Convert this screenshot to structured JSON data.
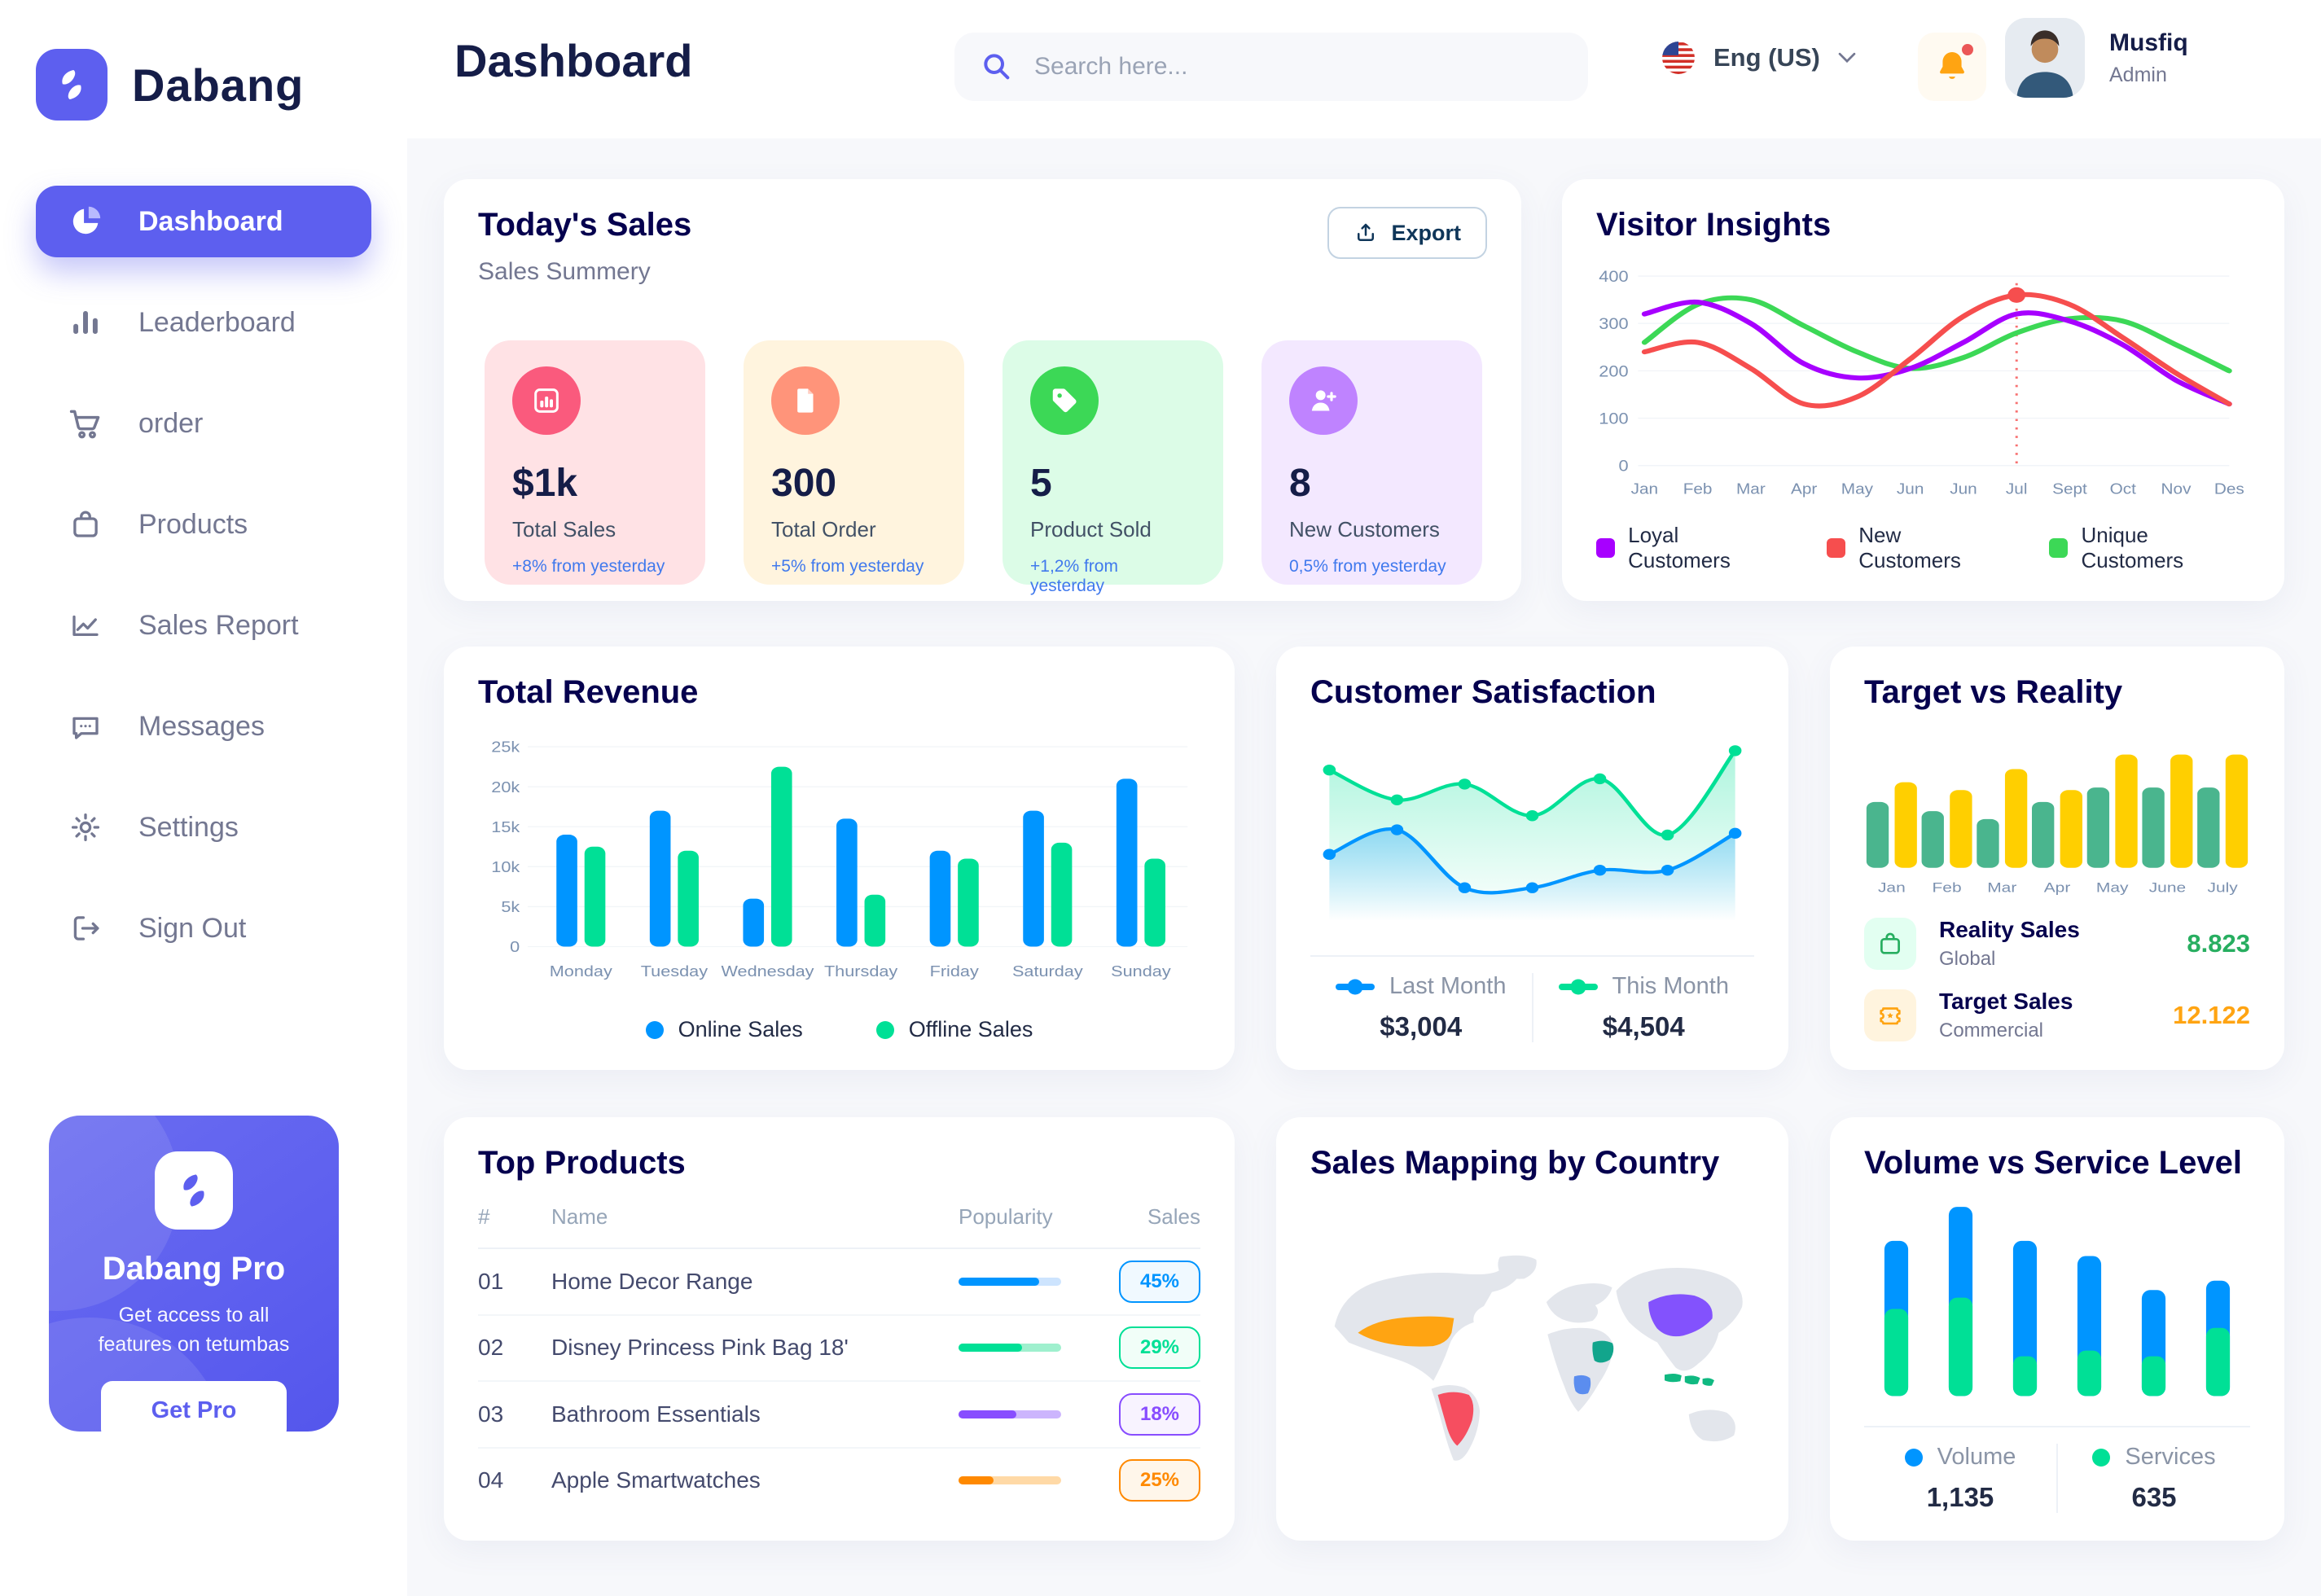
{
  "app": {
    "name": "Dabang"
  },
  "sidebar": {
    "items": [
      {
        "label": "Dashboard"
      },
      {
        "label": "Leaderboard"
      },
      {
        "label": "order"
      },
      {
        "label": "Products"
      },
      {
        "label": "Sales Report"
      },
      {
        "label": "Messages"
      },
      {
        "label": "Settings"
      },
      {
        "label": "Sign Out"
      }
    ],
    "promo": {
      "title": "Dabang Pro",
      "description": "Get access to all features on tetumbas",
      "button": "Get Pro"
    }
  },
  "header": {
    "title": "Dashboard",
    "search_placeholder": "Search here...",
    "language": "Eng (US)",
    "user": {
      "name": "Musfiq",
      "role": "Admin"
    }
  },
  "today_sales": {
    "title": "Today's Sales",
    "subtitle": "Sales Summery",
    "export_label": "Export",
    "stats": [
      {
        "value": "$1k",
        "label": "Total Sales",
        "delta": "+8% from yesterday",
        "bg": "#FFE2E5",
        "icon_bg": "#FA5A7D"
      },
      {
        "value": "300",
        "label": "Total Order",
        "delta": "+5% from yesterday",
        "bg": "#FFF4DE",
        "icon_bg": "#FF947A"
      },
      {
        "value": "5",
        "label": "Product Sold",
        "delta": "+1,2% from yesterday",
        "bg": "#DCFCE7",
        "icon_bg": "#3CD856"
      },
      {
        "value": "8",
        "label": "New Customers",
        "delta": "0,5% from yesterday",
        "bg": "#F3E8FF",
        "icon_bg": "#BF83FF"
      }
    ]
  },
  "top_products": {
    "title": "Top Products",
    "headers": [
      "#",
      "Name",
      "Popularity",
      "Sales"
    ],
    "rows": [
      {
        "num": "01",
        "name": "Home Decor Range",
        "bar_pct": 78,
        "sales": "45%",
        "color": "#0095FF",
        "track": "#CDE4FE",
        "badge_bg": "#F0F9FF"
      },
      {
        "num": "02",
        "name": "Disney Princess Pink Bag 18'",
        "bar_pct": 62,
        "sales": "29%",
        "color": "#00E096",
        "track": "#9FF0CE",
        "badge_bg": "#F1FEF8"
      },
      {
        "num": "03",
        "name": "Bathroom Essentials",
        "bar_pct": 56,
        "sales": "18%",
        "color": "#884DFF",
        "track": "#CCB5FD",
        "badge_bg": "#F8F3FF"
      },
      {
        "num": "04",
        "name": "Apple Smartwatches",
        "bar_pct": 34,
        "sales": "25%",
        "color": "#FF8900",
        "track": "#FFD9A6",
        "badge_bg": "#FFF6EA"
      }
    ]
  },
  "map": {
    "title": "Sales Mapping by Country",
    "countries": [
      {
        "name": "United States",
        "color": "#FFA412"
      },
      {
        "name": "Brazil",
        "color": "#F64E60"
      },
      {
        "name": "Saudi Arabia",
        "color": "#12A58C"
      },
      {
        "name": "DR Congo",
        "color": "#5B8DEF"
      },
      {
        "name": "China",
        "color": "#8352FD"
      },
      {
        "name": "Indonesia",
        "color": "#10B981"
      }
    ]
  },
  "chart_data": [
    {
      "id": "visitor_insights",
      "type": "line",
      "title": "Visitor Insights",
      "x": [
        "Jan",
        "Feb",
        "Mar",
        "Apr",
        "May",
        "Jun",
        "Jun",
        "Jul",
        "Sept",
        "Oct",
        "Nov",
        "Des"
      ],
      "ylim": [
        0,
        400
      ],
      "yticks": [
        0,
        100,
        200,
        300,
        400
      ],
      "grid": true,
      "legend_position": "bottom",
      "series": [
        {
          "name": "Loyal Customers",
          "color": "#A700FF",
          "values": [
            320,
            345,
            300,
            215,
            185,
            205,
            260,
            320,
            305,
            255,
            180,
            130
          ]
        },
        {
          "name": "New Customers",
          "color": "#F64E4E",
          "values": [
            240,
            260,
            205,
            130,
            145,
            225,
            315,
            360,
            340,
            270,
            195,
            130
          ]
        },
        {
          "name": "Unique Customers",
          "color": "#3CD856",
          "values": [
            260,
            340,
            350,
            295,
            240,
            205,
            228,
            280,
            310,
            305,
            255,
            200
          ]
        }
      ],
      "annotation": {
        "x_index": 7,
        "series_index": 1
      }
    },
    {
      "id": "total_revenue",
      "type": "bar",
      "title": "Total Revenue",
      "categories": [
        "Monday",
        "Tuesday",
        "Wednesday",
        "Thursday",
        "Friday",
        "Saturday",
        "Sunday"
      ],
      "ylim": [
        0,
        25000
      ],
      "yticks": [
        0,
        5000,
        10000,
        15000,
        20000,
        25000
      ],
      "ytick_labels": [
        "0",
        "5k",
        "10k",
        "15k",
        "20k",
        "25k"
      ],
      "grid": true,
      "legend_position": "bottom",
      "series": [
        {
          "name": "Online Sales",
          "color": "#0095FF",
          "values": [
            14000,
            17000,
            6000,
            16000,
            12000,
            17000,
            21000
          ]
        },
        {
          "name": "Offline Sales",
          "color": "#00E096",
          "values": [
            12500,
            12000,
            22500,
            6500,
            11000,
            13000,
            11000
          ]
        }
      ]
    },
    {
      "id": "customer_satisfaction",
      "type": "area",
      "title": "Customer Satisfaction",
      "ylim": [
        0,
        100
      ],
      "legend_position": "bottom",
      "series": [
        {
          "name": "Last Month",
          "total": "$3,004",
          "color": "#0095FF",
          "values": [
            38,
            52,
            19,
            19,
            29,
            29,
            50
          ]
        },
        {
          "name": "This Month",
          "total": "$4,504",
          "color": "#00E096",
          "values": [
            86,
            69,
            78,
            60,
            81,
            49,
            97
          ]
        }
      ]
    },
    {
      "id": "target_vs_reality",
      "type": "bar",
      "title": "Target vs Reality",
      "categories": [
        "Jan",
        "Feb",
        "Mar",
        "Apr",
        "May",
        "June",
        "July"
      ],
      "ylim": [
        0,
        100
      ],
      "legend_position": "bottom",
      "series": [
        {
          "name": "Reality Sales",
          "tag": "Global",
          "value": "8.823",
          "color": "#4AB58E",
          "icon_bg": "#E2FFF1",
          "value_color": "#27AE60",
          "values": [
            50,
            43,
            37,
            50,
            61,
            61,
            61
          ]
        },
        {
          "name": "Target Sales",
          "tag": "Commercial",
          "value": "12.122",
          "color": "#FFCF00",
          "icon_bg": "#FFF4DE",
          "value_color": "#FFA412",
          "values": [
            65,
            59,
            75,
            59,
            86,
            86,
            86
          ]
        }
      ]
    },
    {
      "id": "volume_vs_service",
      "type": "stacked-bar",
      "title": "Volume vs Service Level",
      "ylim": [
        0,
        100
      ],
      "legend_position": "bottom",
      "series": [
        {
          "name": "Volume",
          "total": "1,135",
          "color": "#0095FF",
          "values": [
            36,
            48,
            61,
            50,
            35,
            25
          ]
        },
        {
          "name": "Services",
          "total": "635",
          "color": "#00E096",
          "values": [
            46,
            52,
            21,
            24,
            21,
            36
          ]
        }
      ]
    }
  ]
}
